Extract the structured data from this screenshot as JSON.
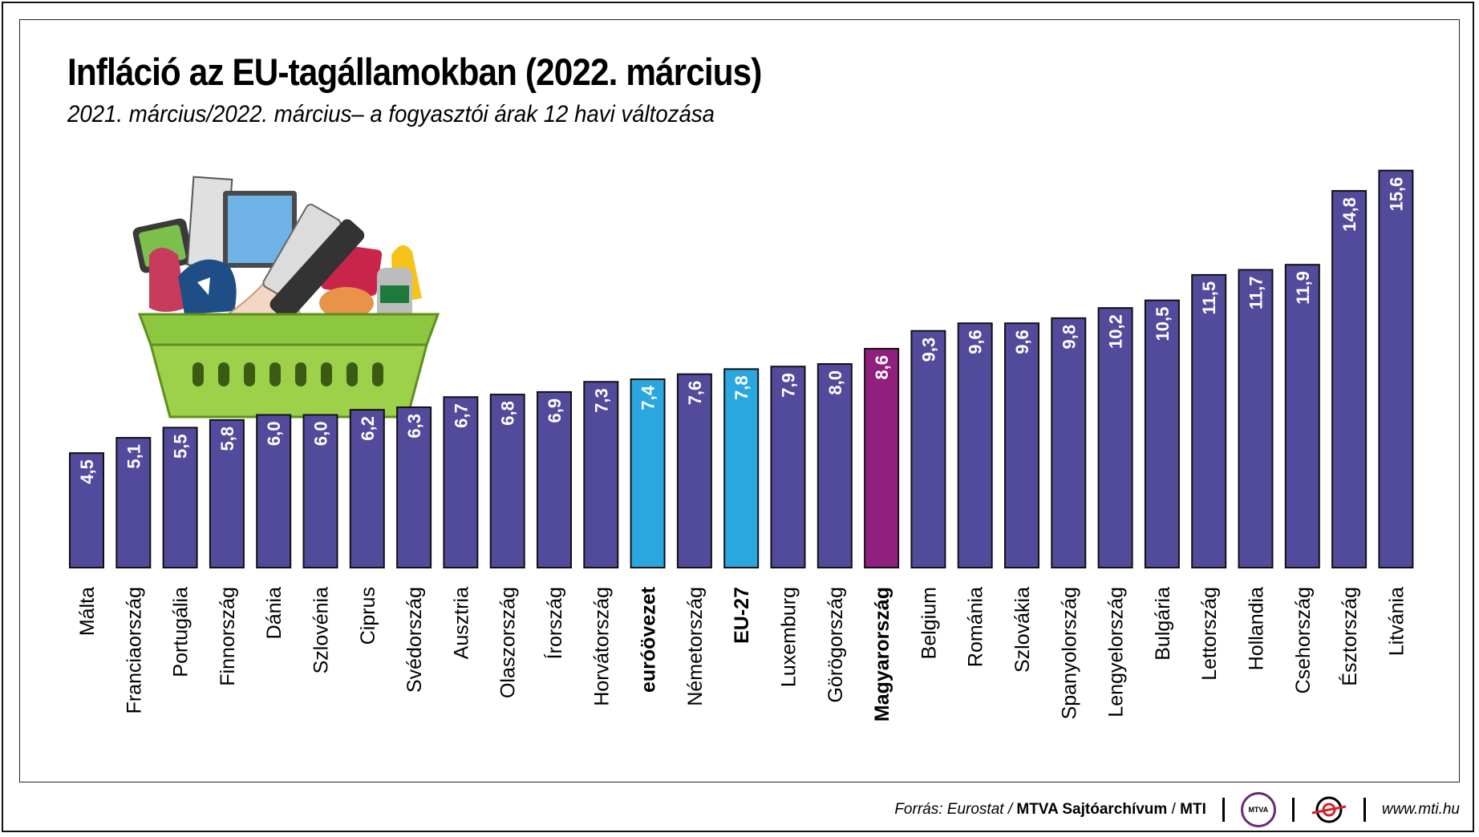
{
  "header": {
    "title": "Infláció az EU-tagállamokban (2022. március)",
    "subtitle": "2021. március/2022. március– a fogyasztói árak 12 havi változása"
  },
  "footer": {
    "source_prefix": "Forrás: Eurostat / ",
    "source_org": "MTVA Sajtóarchívum",
    "source_sep": " / ",
    "source_mti": "MTI",
    "mtva_logo_text": "MTVA",
    "website": "www.mti.hu"
  },
  "colors": {
    "country": "#524b9c",
    "aggregate": "#2aa7df",
    "hungary": "#911f7e"
  },
  "illustration": "shopping-basket-with-products",
  "chart_data": {
    "type": "bar",
    "title": "Infláció az EU-tagállamokban (2022. március)",
    "subtitle": "2021. március/2022. március– a fogyasztói árak 12 havi változása",
    "categories": [
      "Málta",
      "Franciaország",
      "Portugália",
      "Finnország",
      "Dánia",
      "Szlovénia",
      "Ciprus",
      "Svédország",
      "Ausztria",
      "Olaszország",
      "Írország",
      "Horvátország",
      "euróövezet",
      "Németország",
      "EU-27",
      "Luxemburg",
      "Görögország",
      "Magyarország",
      "Belgium",
      "Románia",
      "Szlovákia",
      "Spanyolország",
      "Lengyelország",
      "Bulgária",
      "Lettország",
      "Hollandia",
      "Csehország",
      "Észtország",
      "Litvánia"
    ],
    "values": [
      4.5,
      5.1,
      5.5,
      5.8,
      6.0,
      6.0,
      6.2,
      6.3,
      6.7,
      6.8,
      6.9,
      7.3,
      7.4,
      7.6,
      7.8,
      7.9,
      8.0,
      8.6,
      9.3,
      9.6,
      9.6,
      9.8,
      10.2,
      10.5,
      11.5,
      11.7,
      11.9,
      14.8,
      15.6
    ],
    "value_labels": [
      "4,5",
      "5,1",
      "5,5",
      "5,8",
      "6,0",
      "6,0",
      "6,2",
      "6,3",
      "6,7",
      "6,8",
      "6,9",
      "7,3",
      "7,4",
      "7,6",
      "7,8",
      "7,9",
      "8,0",
      "8,6",
      "9,3",
      "9,6",
      "9,6",
      "9,8",
      "10,2",
      "10,5",
      "11,5",
      "11,7",
      "11,9",
      "14,8",
      "15,6"
    ],
    "highlight": {
      "euróövezet": "aggregate",
      "EU-27": "aggregate",
      "Magyarország": "hungary"
    },
    "bold_categories": [
      "euróövezet",
      "EU-27",
      "Magyarország"
    ],
    "xlabel": "",
    "ylabel": "",
    "ylim": [
      0,
      16
    ],
    "grid": false,
    "legend": "none"
  }
}
